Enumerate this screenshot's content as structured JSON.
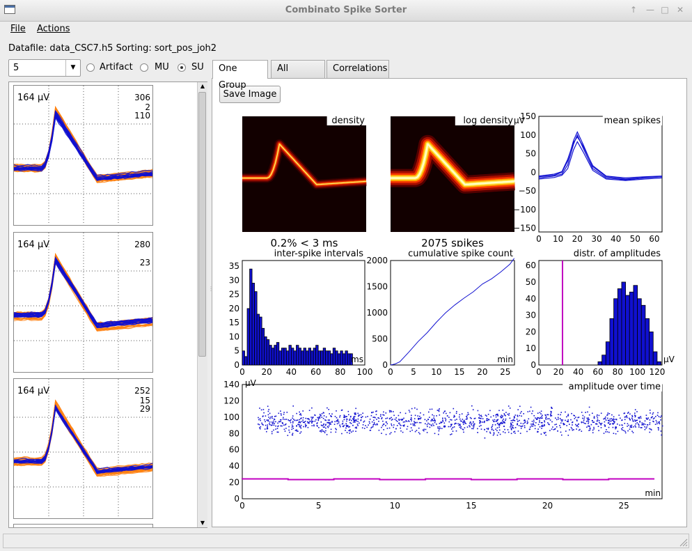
{
  "window": {
    "title": "Combinato Spike Sorter",
    "buttons": [
      "↑",
      "—",
      "□",
      "✕"
    ]
  },
  "menu": {
    "file": "File",
    "actions": "Actions"
  },
  "datafile_line": "Datafile: data_CSC7.h5 Sorting: sort_pos_joh2",
  "group_select": {
    "value": "5"
  },
  "radios": [
    {
      "label": "Artifact",
      "checked": false
    },
    {
      "label": "MU",
      "checked": false
    },
    {
      "label": "SU",
      "checked": true
    }
  ],
  "tabs": [
    {
      "label": "One Group",
      "active": true
    },
    {
      "label": "All Groups",
      "active": false
    },
    {
      "label": "Correlations",
      "active": false
    }
  ],
  "save_button": "Save Image",
  "colors": {
    "orange": "#ff7f0e",
    "blue": "#1010d0",
    "cyan": "#1b9be0",
    "magenta": "#c000c0"
  },
  "thumbnails": [
    {
      "scale": "164 µV",
      "counts": [
        {
          "text": "306",
          "color": "#ff7f0e"
        },
        {
          "text": "2",
          "color": "#1b9be0"
        },
        {
          "text": "110",
          "color": "#1010d0"
        }
      ]
    },
    {
      "scale": "164 µV",
      "counts": [
        {
          "text": "280",
          "color": "#ff7f0e"
        },
        {
          "text": "",
          "color": "#1b9be0"
        },
        {
          "text": "23",
          "color": "#1010d0"
        }
      ]
    },
    {
      "scale": "164 µV",
      "counts": [
        {
          "text": "252",
          "color": "#ff7f0e"
        },
        {
          "text": "15",
          "color": "#1b9be0"
        },
        {
          "text": "29",
          "color": "#1010d0"
        }
      ]
    }
  ],
  "panels": {
    "density": {
      "title": "density",
      "caption": "0.2% < 3 ms"
    },
    "log_density": {
      "title": "log density",
      "caption": "2075 spikes"
    },
    "mean_spikes": {
      "title": "mean spikes",
      "unit": "µV",
      "yticks": [
        "150",
        "100",
        "50",
        "0",
        "−50",
        "−100",
        "−150"
      ],
      "xticks": [
        "0",
        "10",
        "20",
        "30",
        "40",
        "50",
        "60"
      ]
    },
    "isi": {
      "title": "inter-spike intervals",
      "unit": "ms",
      "yticks": [
        "35",
        "30",
        "25",
        "20",
        "15",
        "10",
        "5",
        "0"
      ],
      "xticks": [
        "0",
        "20",
        "40",
        "60",
        "80",
        "100"
      ]
    },
    "cumulative": {
      "title": "cumulative spike count",
      "unit": "min",
      "yticks": [
        "2000",
        "1500",
        "1000",
        "500",
        "0"
      ],
      "xticks": [
        "0",
        "5",
        "10",
        "15",
        "20",
        "25"
      ]
    },
    "amplitudes": {
      "title": "distr. of amplitudes",
      "unit": "µV",
      "yticks": [
        "60",
        "50",
        "40",
        "30",
        "20",
        "10",
        "0"
      ],
      "xticks": [
        "0",
        "20",
        "40",
        "60",
        "80",
        "100",
        "120"
      ]
    },
    "amp_time": {
      "title": "amplitude over time",
      "yunit": "µV",
      "xunit": "min",
      "yticks": [
        "140",
        "120",
        "100",
        "80",
        "60",
        "40",
        "20",
        "0"
      ],
      "xticks": [
        "0",
        "5",
        "10",
        "15",
        "20",
        "25"
      ]
    }
  },
  "chart_data": [
    {
      "type": "line",
      "title": "mean spikes",
      "ylabel": "µV",
      "xlim": [
        0,
        64
      ],
      "ylim": [
        -160,
        150
      ],
      "series": [
        {
          "x": [
            0,
            8,
            12,
            15,
            18,
            20,
            23,
            28,
            35,
            45,
            55,
            64
          ],
          "values": [
            -15,
            -10,
            -5,
            20,
            75,
            100,
            65,
            10,
            -15,
            -20,
            -15,
            -12
          ]
        },
        {
          "x": [
            0,
            8,
            12,
            15,
            18,
            20,
            23,
            28,
            35,
            45,
            55,
            64
          ],
          "values": [
            -12,
            -8,
            0,
            30,
            85,
            108,
            75,
            15,
            -12,
            -18,
            -14,
            -12
          ]
        },
        {
          "x": [
            0,
            8,
            12,
            15,
            18,
            20,
            23,
            28,
            35,
            45,
            55,
            64
          ],
          "values": [
            -18,
            -14,
            -8,
            10,
            60,
            82,
            55,
            5,
            -18,
            -22,
            -18,
            -15
          ]
        },
        {
          "x": [
            0,
            8,
            12,
            15,
            18,
            20,
            23,
            28,
            35,
            45,
            55,
            64
          ],
          "values": [
            -10,
            -5,
            2,
            35,
            80,
            95,
            70,
            18,
            -10,
            -15,
            -12,
            -10
          ]
        }
      ]
    },
    {
      "type": "bar",
      "title": "inter-spike intervals",
      "xlabel": "ms",
      "xlim": [
        0,
        100
      ],
      "ylim": [
        0,
        37
      ],
      "x": [
        1,
        3,
        5,
        7,
        9,
        11,
        13,
        15,
        17,
        19,
        21,
        23,
        25,
        27,
        29,
        31,
        33,
        35,
        37,
        39,
        41,
        43,
        45,
        47,
        49,
        51,
        53,
        55,
        57,
        59,
        61,
        63,
        65,
        67,
        69,
        71,
        73,
        75,
        77,
        79,
        81,
        83,
        85,
        87,
        89
      ],
      "values": [
        5,
        3,
        20,
        34,
        29,
        26,
        18,
        17,
        13,
        10,
        9,
        7,
        6,
        7,
        8,
        5,
        6,
        6,
        5,
        7,
        6,
        5,
        7,
        6,
        5,
        6,
        5,
        6,
        5,
        6,
        7,
        5,
        5,
        6,
        5,
        5,
        4,
        6,
        5,
        4,
        5,
        4,
        5,
        4,
        4
      ]
    },
    {
      "type": "line",
      "title": "cumulative spike count",
      "xlabel": "min",
      "xlim": [
        0,
        27
      ],
      "ylim": [
        0,
        2000
      ],
      "series": [
        {
          "x": [
            0,
            1,
            2,
            4,
            6,
            8,
            10,
            12,
            14,
            16,
            18,
            20,
            22,
            24,
            26,
            27
          ],
          "values": [
            0,
            20,
            60,
            250,
            450,
            620,
            820,
            1000,
            1150,
            1280,
            1400,
            1550,
            1650,
            1780,
            1930,
            2050
          ]
        }
      ]
    },
    {
      "type": "bar",
      "title": "distr. of amplitudes",
      "xlabel": "µV",
      "xlim": [
        0,
        125
      ],
      "ylim": [
        0,
        63
      ],
      "threshold": 24,
      "x": [
        62,
        66,
        70,
        74,
        78,
        82,
        86,
        90,
        94,
        98,
        102,
        106,
        110,
        114,
        118,
        122
      ],
      "values": [
        2,
        6,
        14,
        28,
        40,
        46,
        50,
        42,
        44,
        48,
        40,
        36,
        28,
        20,
        8,
        2
      ]
    },
    {
      "type": "scatter",
      "title": "amplitude over time",
      "xlabel": "min",
      "ylabel": "µV",
      "xlim": [
        0,
        27.5
      ],
      "ylim": [
        0,
        140
      ],
      "threshold_level": 24
    }
  ]
}
